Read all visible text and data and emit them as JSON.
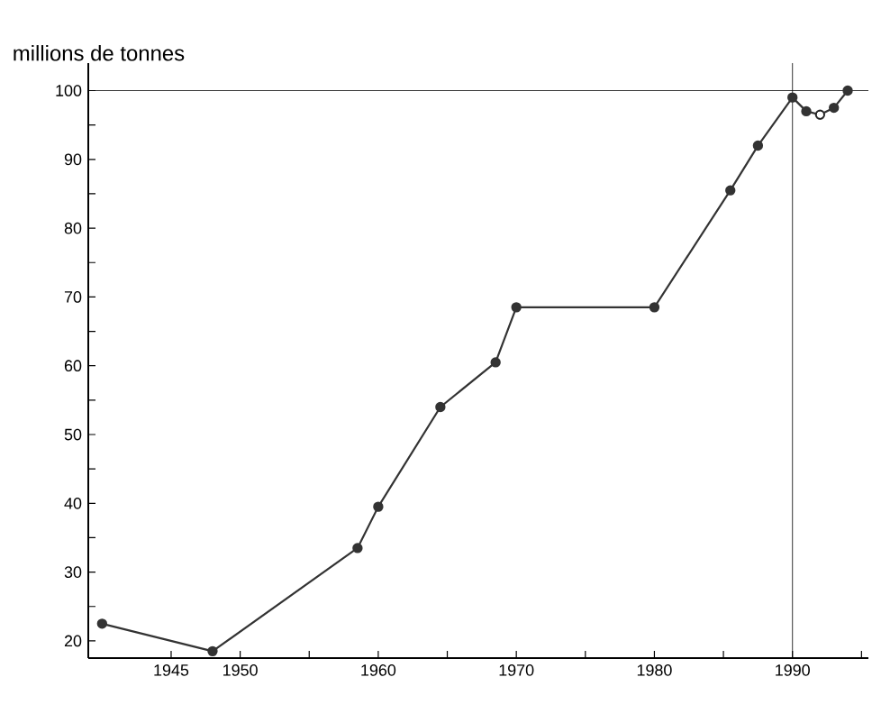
{
  "chart_data": {
    "type": "line",
    "ylabel": "millions de tonnes",
    "x": [
      1940,
      1948,
      1958.5,
      1960,
      1964.5,
      1968.5,
      1970,
      1980,
      1985.5,
      1987.5,
      1990,
      1991,
      1992,
      1993,
      1994
    ],
    "series": [
      {
        "color": "#333333",
        "values": [
          22.5,
          18.5,
          33.5,
          39.5,
          54,
          60.5,
          68.5,
          68.5,
          85.5,
          92,
          99,
          97,
          96.5,
          97.5,
          100
        ],
        "marker": "circle",
        "line_style": "solid"
      },
      {
        "type": "scatter",
        "color": "#ffffff",
        "x": [
          1992
        ],
        "values": [
          96.5
        ],
        "marker": "circle"
      }
    ],
    "xlim": [
      1939,
      1995.5
    ],
    "ylim": [
      17.5,
      104
    ],
    "xticks": [
      1945,
      1950,
      {
        "value": 1955,
        "label": null
      },
      1960,
      {
        "value": 1965,
        "label": null
      },
      1970,
      {
        "value": 1975,
        "label": null
      },
      1980,
      {
        "value": 1985,
        "label": null
      },
      1990,
      {
        "value": 1995,
        "label": null
      }
    ],
    "yticks": [
      20,
      {
        "value": 25,
        "label": null
      },
      30,
      {
        "value": 35,
        "label": null
      },
      40,
      {
        "value": 45,
        "label": null
      },
      50,
      {
        "value": 55,
        "label": null
      },
      60,
      {
        "value": 65,
        "label": null
      },
      70,
      {
        "value": 75,
        "label": null
      },
      80,
      {
        "value": 85,
        "label": null
      },
      90,
      {
        "value": 95,
        "label": null
      },
      100
    ],
    "ref_lines": [
      {
        "axis": "x",
        "value": 1990
      },
      {
        "axis": "y",
        "value": 100
      }
    ]
  }
}
